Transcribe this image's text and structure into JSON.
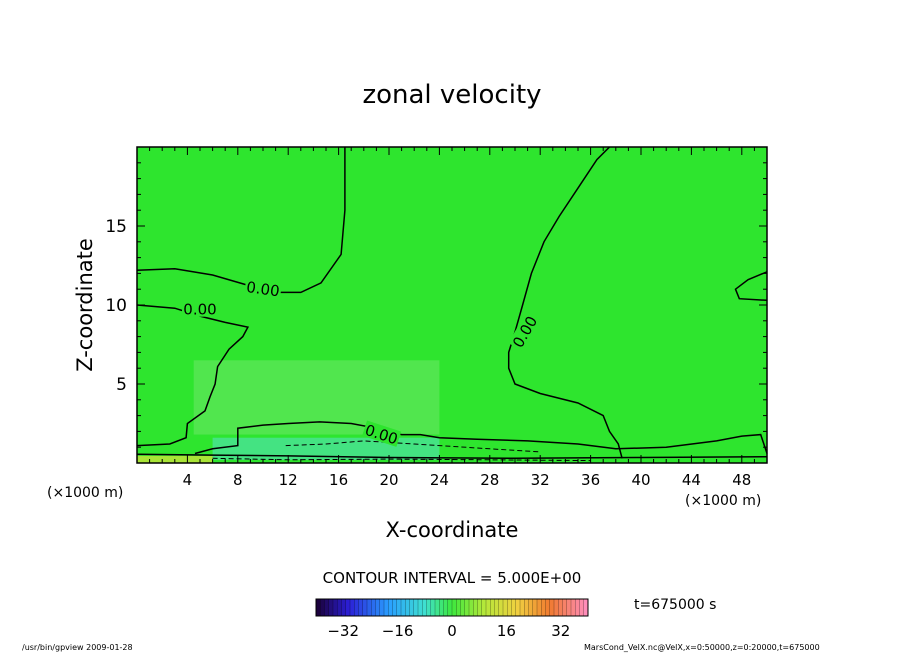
{
  "chart_data": {
    "type": "contour",
    "title": "zonal velocity",
    "xlabel": "X-coordinate",
    "ylabel": "Z-coordinate",
    "x_unit_left": "(×1000 m)",
    "x_unit_right": "(×1000 m)",
    "xlim": [
      0,
      50
    ],
    "ylim": [
      0,
      20
    ],
    "x_ticks": [
      4,
      8,
      12,
      16,
      20,
      24,
      28,
      32,
      36,
      40,
      44,
      48
    ],
    "y_ticks": [
      5,
      10,
      15
    ],
    "contour_interval_label": "CONTOUR INTERVAL = 5.000E+00",
    "contour_labels": [
      "0.00",
      "0.00",
      "0.00",
      "0.00"
    ],
    "time_label": "t=675000 s",
    "colorbar": {
      "min": -40,
      "max": 40,
      "ticks": [
        -32,
        -16,
        0,
        16,
        32
      ],
      "tick_labels": [
        "−32",
        "−16",
        "0",
        "16",
        "32"
      ]
    },
    "zero_contours": [
      {
        "name": "upper-left",
        "points": [
          [
            0,
            12.2
          ],
          [
            3,
            12.3
          ],
          [
            6,
            11.9
          ],
          [
            9,
            11.2
          ],
          [
            11,
            10.8
          ],
          [
            13,
            10.8
          ],
          [
            14.6,
            11.4
          ],
          [
            16.2,
            13.2
          ],
          [
            16.5,
            16
          ],
          [
            16.5,
            20
          ]
        ]
      },
      {
        "name": "central",
        "points": [
          [
            37.5,
            20
          ],
          [
            36.5,
            19.2
          ],
          [
            35,
            17.4
          ],
          [
            33.5,
            15.6
          ],
          [
            32.3,
            14.0
          ],
          [
            31.3,
            12.0
          ],
          [
            30.6,
            10.0
          ],
          [
            30.0,
            8.3
          ],
          [
            29.5,
            7.0
          ],
          [
            29.5,
            6.0
          ],
          [
            30.0,
            5.0
          ],
          [
            32.0,
            4.4
          ],
          [
            35.0,
            3.8
          ],
          [
            37.0,
            3.0
          ],
          [
            37.5,
            2.0
          ],
          [
            38.2,
            1.2
          ],
          [
            38.5,
            0.3
          ]
        ]
      },
      {
        "name": "left-mid",
        "points": [
          [
            0,
            10.0
          ],
          [
            3,
            9.8
          ],
          [
            5,
            9.3
          ],
          [
            7,
            8.9
          ],
          [
            8.8,
            8.6
          ],
          [
            8.4,
            8.0
          ],
          [
            7.3,
            7.2
          ],
          [
            6.4,
            6.1
          ],
          [
            6.2,
            5.0
          ],
          [
            5.8,
            4.2
          ],
          [
            5.4,
            3.3
          ],
          [
            4.0,
            2.5
          ],
          [
            3.9,
            1.6
          ],
          [
            2.6,
            1.2
          ],
          [
            0,
            1.1
          ]
        ]
      },
      {
        "name": "right-loop",
        "points": [
          [
            50,
            12.1
          ],
          [
            48.5,
            11.6
          ],
          [
            47.5,
            11.0
          ],
          [
            47.8,
            10.4
          ],
          [
            50,
            10.3
          ]
        ]
      },
      {
        "name": "lower-band",
        "points": [
          [
            4.6,
            0.6
          ],
          [
            6.0,
            0.9
          ],
          [
            8.0,
            1.1
          ],
          [
            8.0,
            2.2
          ],
          [
            10.0,
            2.4
          ],
          [
            12.0,
            2.5
          ],
          [
            14.5,
            2.6
          ],
          [
            17.0,
            2.5
          ],
          [
            19.0,
            2.2
          ],
          [
            21.0,
            1.8
          ],
          [
            22.5,
            1.8
          ],
          [
            24.0,
            1.6
          ],
          [
            27.0,
            1.5
          ],
          [
            31.0,
            1.4
          ],
          [
            35.0,
            1.2
          ],
          [
            38.0,
            0.9
          ],
          [
            42.0,
            1.0
          ],
          [
            46.0,
            1.4
          ],
          [
            48.0,
            1.7
          ],
          [
            49.5,
            1.8
          ],
          [
            50.0,
            0.6
          ]
        ]
      },
      {
        "name": "bottom-edge",
        "points": [
          [
            0,
            0.55
          ],
          [
            6,
            0.5
          ],
          [
            12,
            0.45
          ],
          [
            20,
            0.35
          ],
          [
            30,
            0.3
          ],
          [
            40,
            0.35
          ],
          [
            50,
            0.4
          ]
        ]
      }
    ],
    "negative_contours": [
      {
        "points": [
          [
            11.8,
            1.1
          ],
          [
            15,
            1.2
          ],
          [
            18,
            1.4
          ],
          [
            22,
            1.2
          ],
          [
            28,
            0.9
          ],
          [
            32,
            0.7
          ]
        ]
      },
      {
        "points": [
          [
            6,
            0.3
          ],
          [
            12,
            0.2
          ],
          [
            20,
            0.25
          ],
          [
            28,
            0.2
          ],
          [
            36,
            0.15
          ]
        ]
      }
    ],
    "fill_colors": {
      "background": "#2ee52e",
      "light_patch": "#6fe86a",
      "bottom_cyan": "#4fe2a6",
      "bottom_yellow": "#c8e43a"
    }
  },
  "footer": {
    "left": "/usr/bin/gpview  2009-01-28",
    "right": "MarsCond_VelX.nc@VelX,x=0:50000,z=0:20000,t=675000"
  }
}
